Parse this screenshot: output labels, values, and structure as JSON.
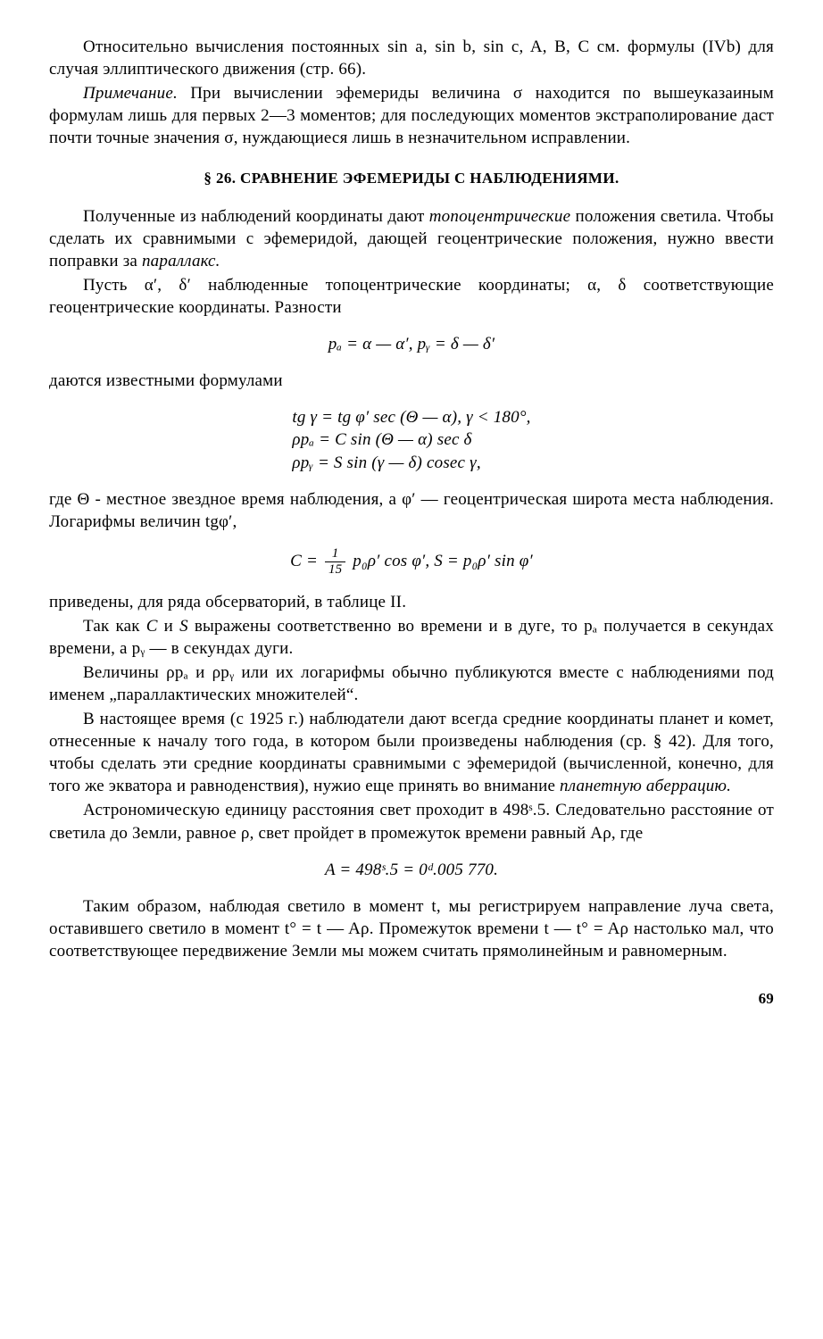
{
  "p1": "Относительно вычисления постоянных sin a, sin b, sin c, A, B, C см. формулы (IVb) для случая эллиптического движения (стр. 66).",
  "p2_lead": "Примечание.",
  "p2_body": " При вычислении эфемериды величина σ находится по вышеуказаиным формулам лишь для первых 2—3 моментов; для последующих моментов экстраполирование даст почти точные значения σ, нуждающиеся лишь в незначительном исправлении.",
  "section": "§ 26. СРАВНЕНИЕ ЭФЕМЕРИДЫ С НАБЛЮДЕНИЯМИ.",
  "p3a": "Полученные из наблюдений координаты дают ",
  "p3b": "топоцентрические",
  "p3c": " положения светила. Чтобы сделать их сравнимыми с эфемеридой, дающей геоцентрические положения, нужно ввести поправки за ",
  "p3d": "параллакс.",
  "p4": "Пусть α′, δ′ наблюденные топоцентрические координаты; α, δ соответствующие геоцентрические координаты. Разности",
  "eq1": "pₐ = α — α′,   pᵧ = δ — δ′",
  "p5": "даются известными формулами",
  "eq2a": "tg γ = tg φ′ sec (Θ — α),   γ < 180°,",
  "eq2b": "ρpₐ = C sin (Θ — α) sec δ",
  "eq2c": "ρpᵧ = S sin (γ — δ) cosec γ,",
  "p6": "где Θ  - местное звездное время наблюдения, а φ′ — геоцентрическая широта места наблюдения. Логарифмы величин tgφ′,",
  "eq3_pre": "C = ",
  "eq3_frac_num": "1",
  "eq3_frac_den": "15",
  "eq3_mid": " p₀ρ′ cos φ′,   S = p₀ρ′ sin φ′",
  "p7": "приведены, для ряда обсерваторий, в таблице II.",
  "p8a": "Так как ",
  "p8b": "C",
  "p8c": " и ",
  "p8d": "S",
  "p8e": " выражены соответственно во времени и в дуге, то pₐ получается в секундах времени, а pᵧ — в секундах дуги.",
  "p9": "Величины ρpₐ и ρpᵧ или их логарифмы обычно публикуются вместе с наблюдениями под именем „параллактических множителей“.",
  "p10a": "В настоящее время (с 1925 г.) наблюдатели дают всегда средние координаты планет и комет, отнесенные к началу того года, в котором были произведены наблюдения (ср. § 42). Для того, чтобы сделать эти средние координаты сравнимыми с эфемеридой (вычисленной, конечно, для того же экватора и равноденствия), нужио еще принять во внимание ",
  "p10b": "планетную аберрацию.",
  "p11": "Астрономическую единицу расстояния свет проходит в 498ˢ.5. Следовательно расстояние от светила до Земли, равное ρ, свет пройдет в промежуток времени равный Aρ, где",
  "eq4": "A = 498ˢ.5 = 0ᵈ.005 770.",
  "p12": "Таким образом, наблюдая светило в момент t, мы регистрируем направление луча света, оставившего светило в момент t° = t — Aρ. Промежуток времени t — t° = Aρ настолько мал, что соответствующее передвижение Земли мы можем считать прямолинейным и равномерным.",
  "pagenum": "69"
}
